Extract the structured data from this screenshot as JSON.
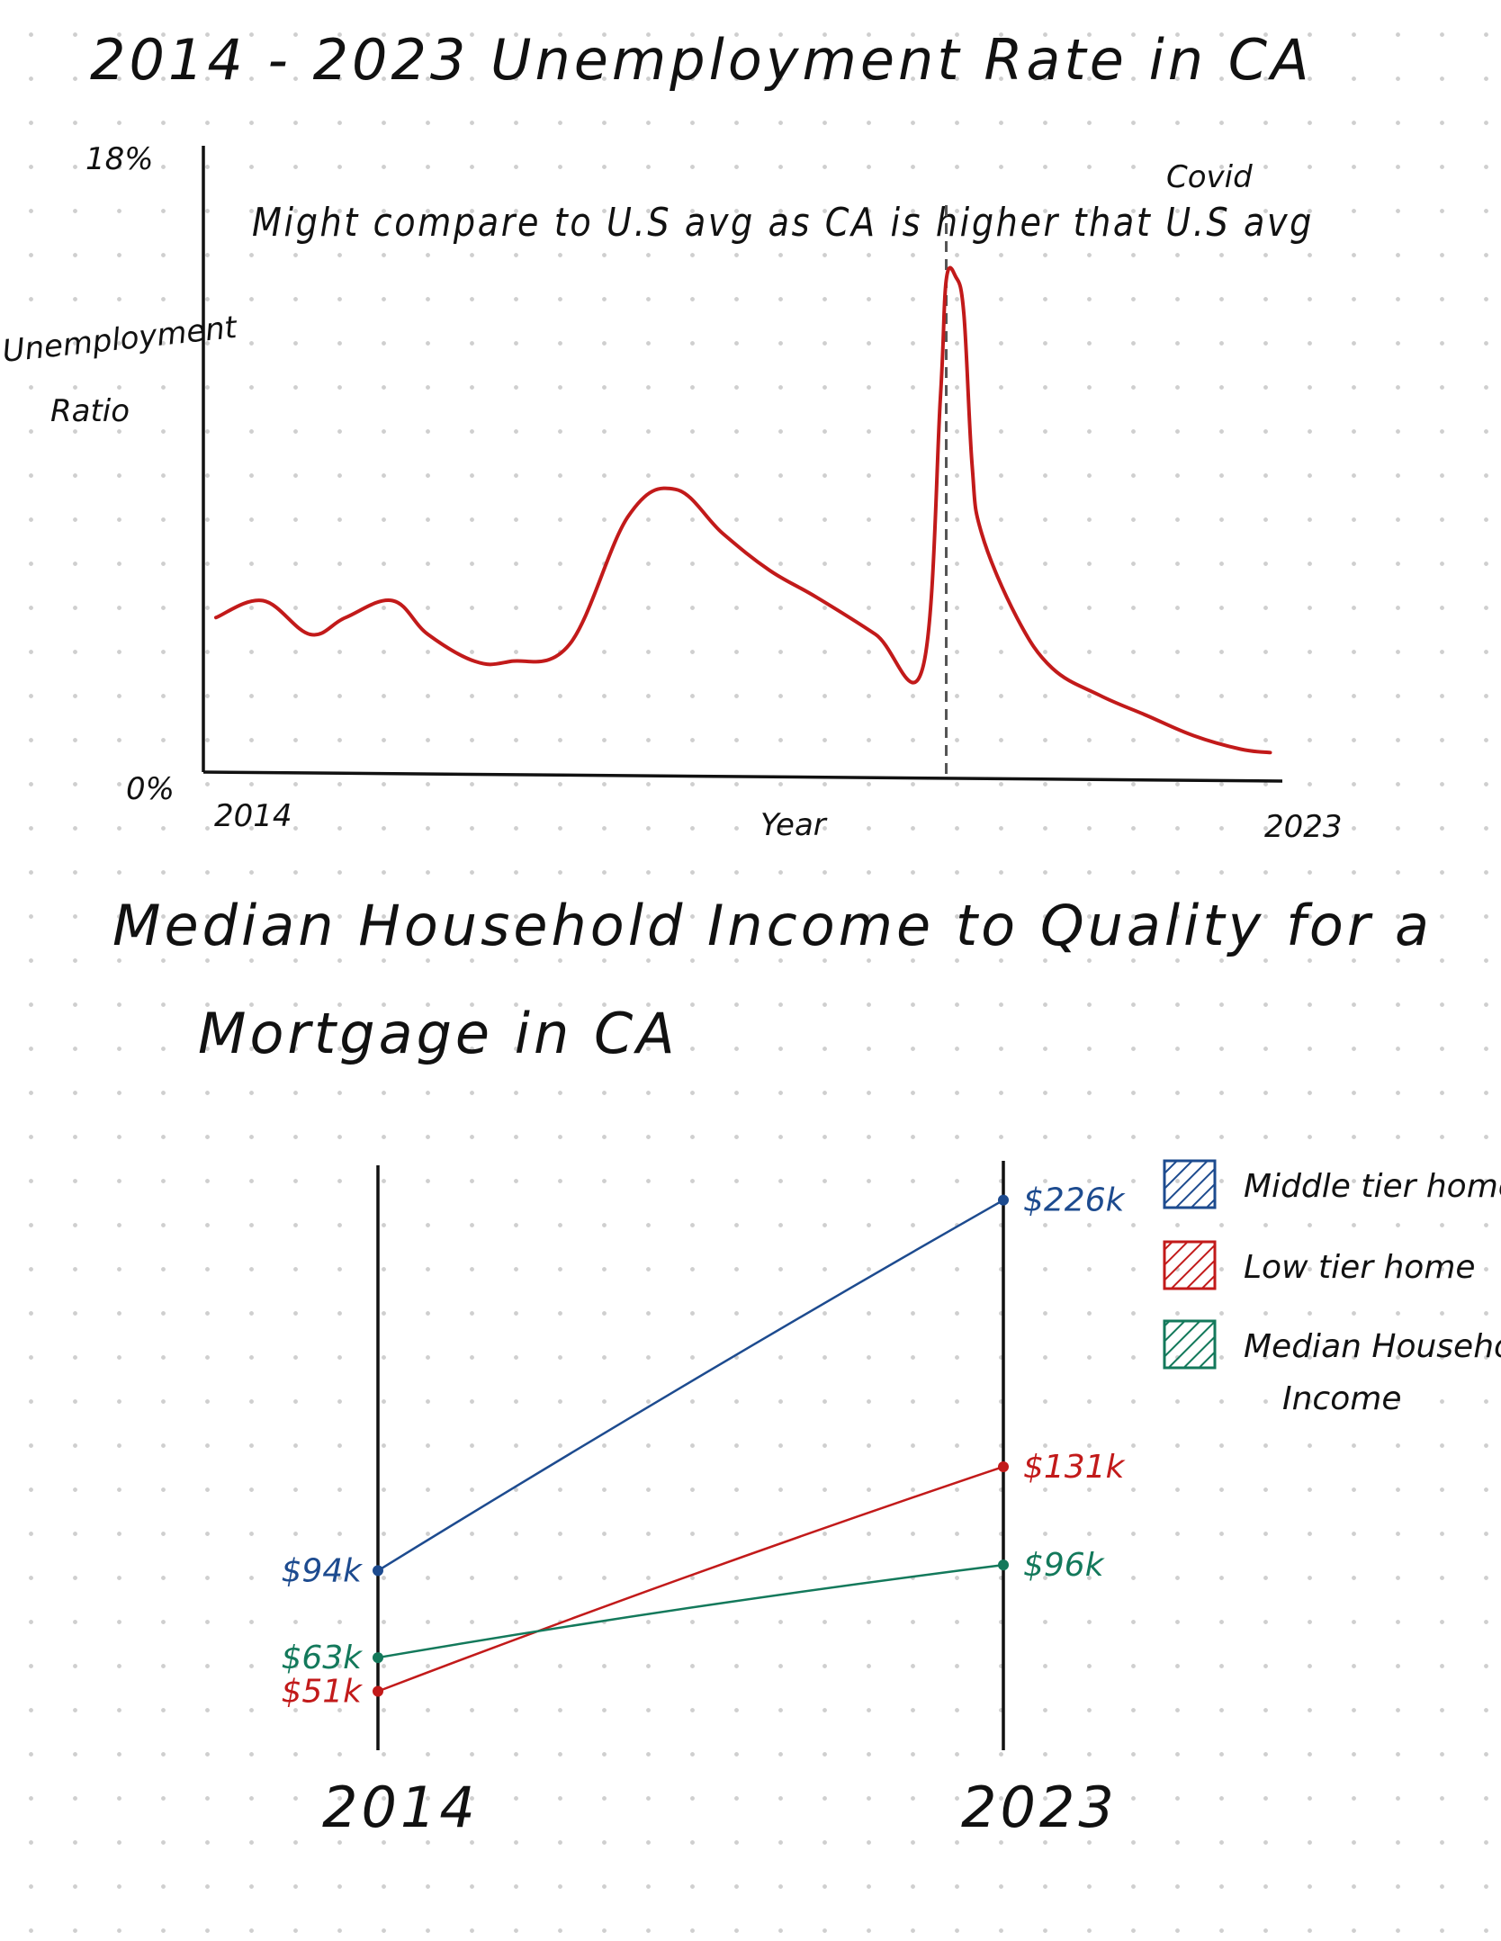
{
  "chart_data": [
    {
      "type": "line",
      "title": "2014 - 2023 Unemployment Rate in CA",
      "annotation": "Might compare to U.S avg as CA is higher that U.S avg",
      "ylabel_line1": "Unemployment",
      "ylabel_line2": "Ratio",
      "xlabel": "Year",
      "y_top_label": "18%",
      "y_bottom_label": "0%",
      "x_start_label": "2014",
      "x_end_label": "2023",
      "event_label": "Covid",
      "event_x": 2020.2,
      "xlim": [
        2014,
        2023
      ],
      "ylim": [
        0,
        18
      ],
      "line_color": "#c21a1a",
      "event_color": "#555555",
      "series": [
        {
          "x": [
            2014.0,
            2014.4,
            2014.8,
            2015.1,
            2015.5,
            2015.8,
            2016.2,
            2016.5,
            2017.0,
            2017.5,
            2017.9,
            2018.3,
            2018.7,
            2019.1,
            2019.6,
            2020.0,
            2020.15,
            2020.2,
            2020.28,
            2020.35,
            2020.42,
            2020.5,
            2020.8,
            2021.1,
            2021.5,
            2021.9,
            2022.3,
            2022.7,
            2022.95
          ],
          "y": [
            4.5,
            5.0,
            4.0,
            4.5,
            5.0,
            4.0,
            3.2,
            3.2,
            3.7,
            7.5,
            8.3,
            7.0,
            5.9,
            5.1,
            4.0,
            3.0,
            11.0,
            14.5,
            14.6,
            13.5,
            9.0,
            7.0,
            4.5,
            3.0,
            2.2,
            1.6,
            1.0,
            0.6,
            0.5
          ]
        }
      ]
    },
    {
      "type": "line",
      "title_line1": "Median Household Income to Quality for a",
      "title_line2": "Mortgage in CA",
      "categories": [
        "2014",
        "2023"
      ],
      "ylim": [
        30,
        240
      ],
      "series": [
        {
          "name": "Middle tier home",
          "values": [
            94,
            226
          ],
          "labels": [
            "$94k",
            "$226k"
          ],
          "color": "#1d4b8f"
        },
        {
          "name": "Low tier home",
          "values": [
            51,
            131
          ],
          "labels": [
            "$51k",
            "$131k"
          ],
          "color": "#c21a1a"
        },
        {
          "name": "Median Household Income",
          "legend_line1": "Median Household",
          "legend_line2": "Income",
          "values": [
            63,
            96
          ],
          "labels": [
            "$63k",
            "$96k"
          ],
          "color": "#13795b"
        }
      ]
    }
  ]
}
